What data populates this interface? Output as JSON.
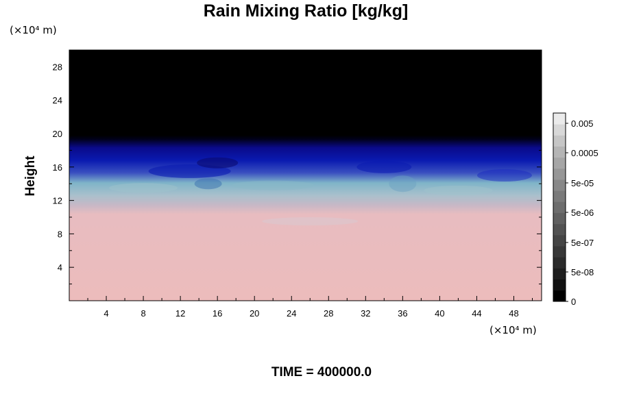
{
  "chart_data": {
    "type": "heatmap",
    "title": "Rain Mixing Ratio [kg/kg]",
    "xlabel": "",
    "ylabel": "Height",
    "x_unit": "(×10⁴ m)",
    "y_unit": "(×10⁴ m)",
    "xlim": [
      0,
      51
    ],
    "ylim": [
      0,
      30
    ],
    "x_ticks": [
      4,
      8,
      12,
      16,
      20,
      24,
      28,
      32,
      36,
      40,
      44,
      48
    ],
    "y_ticks": [
      4,
      8,
      12,
      16,
      20,
      24,
      28
    ],
    "x_minor_step": 2,
    "y_minor_step": 2,
    "colorbar": {
      "labels": [
        "0.005",
        "0.0005",
        "5e-05",
        "5e-06",
        "5e-07",
        "5e-08",
        "0"
      ],
      "levels": 16,
      "colors": [
        "#000000",
        "#111111",
        "#1e1e1e",
        "#2b2b2b",
        "#383838",
        "#454545",
        "#525252",
        "#606060",
        "#6d6d6d",
        "#7a7a7a",
        "#888888",
        "#979797",
        "#a6a6a6",
        "#b5b5b5",
        "#c6c6c6",
        "#d8d8d8",
        "#ebebeb"
      ]
    },
    "field_regions": [
      {
        "name": "upper layer",
        "from_height": 19.5,
        "to_height": 30,
        "color": "#000000"
      },
      {
        "name": "upper cloud layer",
        "from_height": 15.5,
        "to_height": 19.5,
        "color": "#0a0a9a"
      },
      {
        "name": "mid cloud layer",
        "from_height": 12.5,
        "to_height": 15.5,
        "color": "#7fb4c8"
      },
      {
        "name": "lower cloud layer",
        "from_height": 10.5,
        "to_height": 12.5,
        "color": "#c4b8c4"
      },
      {
        "name": "lower layer",
        "from_height": 0,
        "to_height": 10.5,
        "color": "#ecbcbc"
      }
    ],
    "grid": false,
    "legend_position": "right"
  },
  "footer": {
    "time_label": "TIME = 400000.0"
  }
}
